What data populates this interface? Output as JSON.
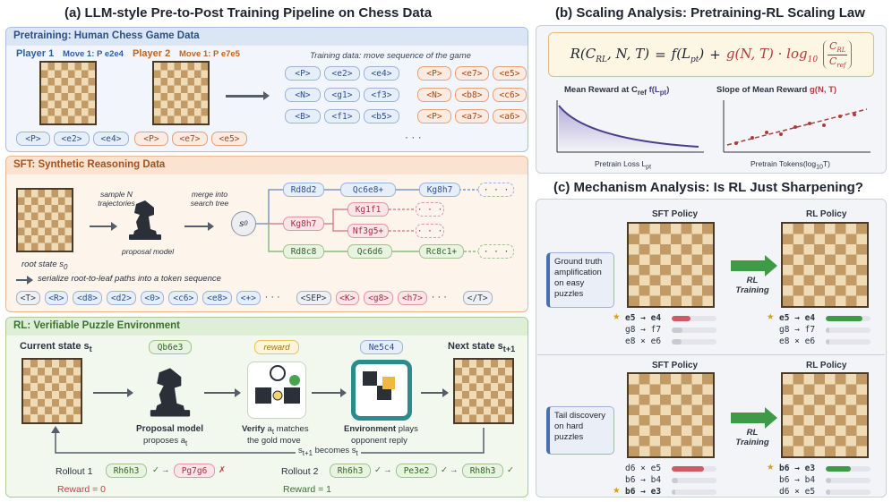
{
  "titles": {
    "a": "(a) LLM-style Pre-to-Post Training Pipeline on Chess Data",
    "b": "(b) Scaling Analysis: Pretraining-RL Scaling Law",
    "c": "(c) Mechanism Analysis: Is RL Just Sharpening?"
  },
  "pretraining": {
    "header": "Pretraining: Human Chess Game Data",
    "player1": "Player 1",
    "move1": "Move 1: P e2e4",
    "player2": "Player 2",
    "move2": "Move 1: P e7e5",
    "training_note": "Training data: move sequence of the game",
    "p1_tokens": [
      "<P>",
      "<e2>",
      "<e4>"
    ],
    "p2_tokens": [
      "<P>",
      "<e7>",
      "<e5>"
    ],
    "grid_blue": [
      [
        "<P>",
        "<e2>",
        "<e4>"
      ],
      [
        "<N>",
        "<g1>",
        "<f3>"
      ],
      [
        "<B>",
        "<f1>",
        "<b5>"
      ]
    ],
    "grid_orange": [
      [
        "<P>",
        "<e7>",
        "<e5>"
      ],
      [
        "<N>",
        "<b8>",
        "<c6>"
      ],
      [
        "<P>",
        "<a7>",
        "<a6>"
      ]
    ],
    "ellipsis": "· · ·"
  },
  "sft": {
    "header": "SFT: Synthetic Reasoning Data",
    "sample": "sample N trajectories",
    "merge": "merge into search tree",
    "proposal": "proposal model",
    "root": "root state s",
    "root_sub": "0",
    "s0": "s",
    "s0_sub": "0",
    "tree": {
      "row1": [
        "Rd8d2",
        "Qc6e8+",
        "Kg8h7"
      ],
      "row2": [
        "Kg8h7",
        "Kg1f1",
        "Nf3g5+"
      ],
      "row3": [
        "Rd8c8",
        "Qc6d6",
        "Rc8c1+"
      ]
    },
    "dots": "· · ·",
    "serialize": "serialize root-to-leaf paths into a token sequence",
    "sequence": [
      "<T>",
      "<R>",
      "<d8>",
      "<d2>",
      "<0>",
      "<c6>",
      "<e8>",
      "<+>",
      "· · ·",
      "<SEP>",
      "<K>",
      "<g8>",
      "<h7>",
      "· · ·",
      "</T>"
    ]
  },
  "rl": {
    "header": "RL: Verifiable Puzzle Environment",
    "current": "Current state s",
    "current_sub": "t",
    "next": "Next state s",
    "next_sub": "t+1",
    "move_a": "Qb6e3",
    "reward": "reward",
    "move_b": "Ne5c4",
    "proposal_title": "Proposal model",
    "proposal_sub": "proposes a",
    "proposal_sub_sub": "t",
    "verify_title": "Verify",
    "verify_text": "a",
    "verify_sub": "t",
    "verify_rest": "matches",
    "verify_line2": "the gold move",
    "env_title": "Environment",
    "env_text": "plays",
    "env_line2": "opponent reply",
    "becomes": "s",
    "becomes_sub": "t+1",
    "becomes_mid": "becomes s",
    "becomes_sub2": "t",
    "rollout1": "Rollout 1",
    "rollout1_moves": [
      "Rh6h3",
      "Pg7g6"
    ],
    "rollout1_marks": [
      "✓",
      "✗"
    ],
    "reward1": "Reward = 0",
    "rollout2": "Rollout 2",
    "rollout2_moves": [
      "Rh6h3",
      "Pe3e2",
      "Rh8h3"
    ],
    "rollout2_marks": [
      "✓",
      "✓",
      "✓"
    ],
    "reward2": "Reward = 1",
    "arrow_glyph": "→"
  },
  "scaling": {
    "formula_parts": [
      "R(C",
      "RL",
      ", N, T)",
      "=",
      "f(L",
      "pt",
      ")",
      "+",
      "g(N, T) · log",
      "10",
      "C",
      "RL",
      "C",
      "ref"
    ],
    "plot1_title": "Mean Reward at C",
    "plot1_title_sub": "ref",
    "plot1_title_f": " f(L",
    "plot1_title_f_sub": "pt",
    "plot1_title_end": ")",
    "plot1_xlabel": "Pretrain Loss L",
    "plot1_xlabel_sub": "pt",
    "plot2_title": "Slope of Mean Reward ",
    "plot2_title_g": "g(N, T)",
    "plot2_xlabel": "Pretrain Tokens(log",
    "plot2_xlabel_sub": "10",
    "plot2_xlabel_end": "T)"
  },
  "mechanism": {
    "sft_policy": "SFT Policy",
    "rl_policy": "RL Policy",
    "rl_training": "RL Training",
    "case1": "Ground truth amplification on easy puzzles",
    "case2": "Tail discovery on hard puzzles",
    "case1_sft": [
      {
        "m": "e5 → e4",
        "p": 0.42,
        "star": true
      },
      {
        "m": "g8 → f7",
        "p": 0.24
      },
      {
        "m": "e8 × e6",
        "p": 0.22
      }
    ],
    "case1_rl": [
      {
        "m": "e5 → e4",
        "p": 0.82,
        "star": true
      },
      {
        "m": "g8 → f7",
        "p": 0.08
      },
      {
        "m": "e8 × e6",
        "p": 0.08
      }
    ],
    "case2_sft": [
      {
        "m": "d6 × e5",
        "p": 0.72
      },
      {
        "m": "b6 → b4",
        "p": 0.14
      },
      {
        "m": "b6 → e3",
        "p": 0.08,
        "star": true
      }
    ],
    "case2_rl": [
      {
        "m": "b6 → e3",
        "p": 0.55,
        "star": true
      },
      {
        "m": "b6 → b4",
        "p": 0.12
      },
      {
        "m": "d6 × e5",
        "p": 0.1
      }
    ],
    "star_glyph": "★",
    "colors": {
      "red": "#cf5a63",
      "green": "#3f9a48",
      "gray": "#c9c9d1"
    }
  },
  "colors": {
    "blue_panel": "#eef3fb",
    "orange_panel": "#fdf1e8",
    "green_panel": "#eff6ea",
    "gray_panel": "#f1f2f5"
  }
}
